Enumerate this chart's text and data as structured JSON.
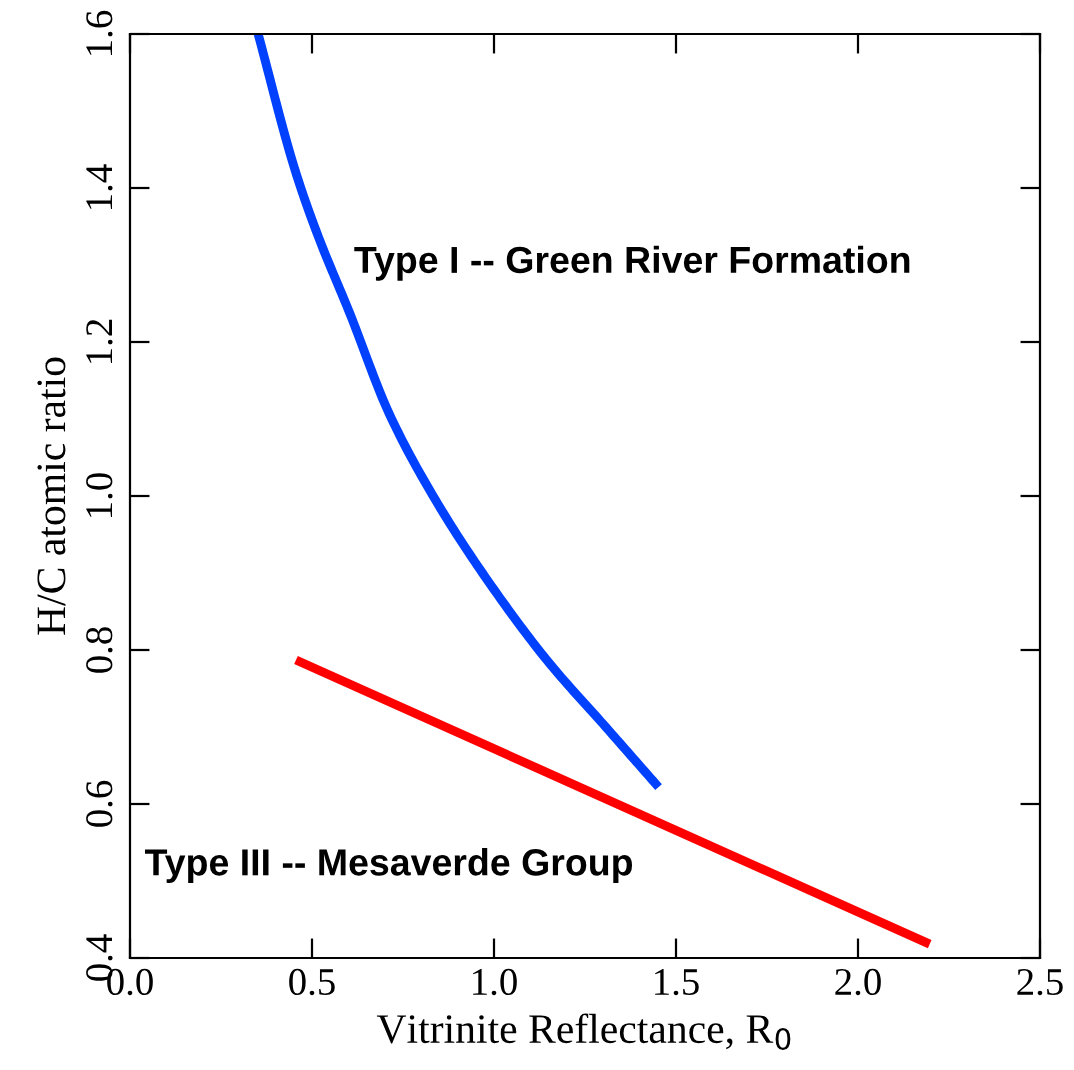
{
  "chart_data": {
    "type": "line",
    "xlabel": "Vitrinite Reflectance, R$_{0}$",
    "ylabel": "H/C atomic ratio",
    "xlim": [
      0.0,
      2.5
    ],
    "xticks": [
      {
        "value": 0,
        "label": "0.0"
      },
      0.5,
      {
        "value": 1,
        "label": "1.0"
      },
      1.5,
      {
        "value": 2,
        "label": "2.0"
      },
      2.5
    ],
    "ylim": [
      0.4,
      1.6
    ],
    "yticks": [
      0.4,
      0.6,
      0.8,
      {
        "value": 1,
        "label": "1.0"
      },
      1.2,
      1.4,
      1.6
    ],
    "grid": false,
    "legend": false,
    "marker": "none",
    "line_style": "solid",
    "series": [
      {
        "color": "#0040ff",
        "x": [
          0.352,
          0.451,
          0.514,
          0.604,
          0.712,
          0.839,
          0.983,
          1.145,
          1.307,
          1.452
        ],
        "values": [
          1.6,
          1.427,
          1.341,
          1.237,
          1.107,
          0.995,
          0.89,
          0.787,
          0.7,
          0.622
        ]
      },
      {
        "color": "#ff0000",
        "x": [
          0.456,
          2.197
        ],
        "values": [
          0.787,
          0.418
        ]
      }
    ],
    "annotations": [
      "Type I -- Green River Formation",
      "Type III -- Mesaverde Group"
    ]
  }
}
